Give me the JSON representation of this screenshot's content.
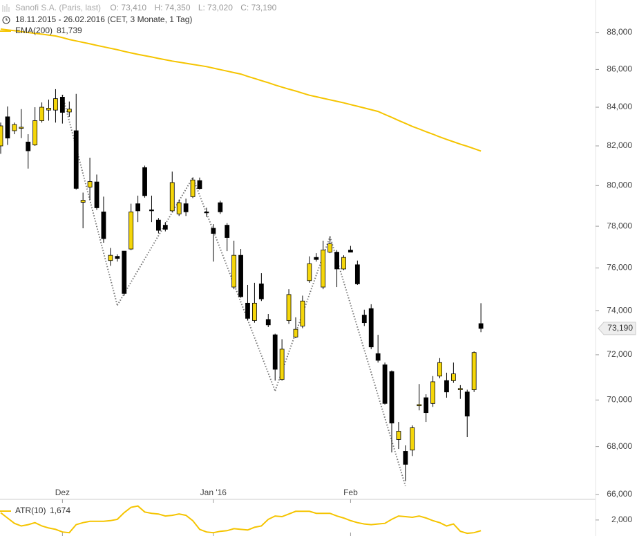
{
  "chart_data": [
    {
      "type": "candlestick",
      "title": "Sanofi S.A. (Paris, last)",
      "ohlc_labels": [
        "O: 73,410",
        "H: 74,350",
        "L: 73,020",
        "C: 73,190"
      ],
      "subtitle": "18.11.2015 - 26.02.2016 (CET, 3 Monate, 1 Tag)",
      "log_scale": true,
      "up_color": "#f5d60a",
      "down_color": "#000000",
      "categories": [
        null,
        null,
        null,
        null,
        null,
        null,
        null,
        null,
        null,
        "Dez",
        null,
        null,
        null,
        null,
        null,
        null,
        null,
        null,
        null,
        null,
        null,
        null,
        null,
        null,
        null,
        null,
        null,
        null,
        null,
        null,
        null,
        "Jan '16",
        null,
        null,
        null,
        null,
        null,
        null,
        null,
        null,
        null,
        null,
        null,
        null,
        null,
        null,
        null,
        null,
        null,
        null,
        null,
        "Feb",
        null,
        null,
        null,
        null,
        null,
        null,
        null,
        null,
        null,
        null,
        null,
        null,
        null,
        null,
        null,
        null,
        null,
        null,
        null
      ],
      "open": [
        82000,
        83500,
        82780,
        82900,
        82200,
        82050,
        83300,
        83850,
        83850,
        84530,
        83750,
        82780,
        79170,
        79920,
        80180,
        78700,
        76350,
        76550,
        76800,
        76900,
        79100,
        80900,
        78800,
        78300,
        78050,
        78750,
        78600,
        79100,
        79450,
        80250,
        78700,
        77900,
        79150,
        78050,
        75100,
        76600,
        74350,
        73550,
        75250,
        73600,
        72900,
        70900,
        73550,
        72800,
        73300,
        75400,
        76500,
        75100,
        76750,
        76750,
        75950,
        76850,
        76150,
        73800,
        74100,
        72050,
        71550,
        71250,
        68300,
        67800,
        67850,
        69750,
        70100,
        69850,
        71050,
        70850,
        70850,
        70450,
        70350,
        70450,
        73410
      ],
      "high": [
        83200,
        84040,
        83200,
        83900,
        82600,
        84000,
        84250,
        84400,
        84950,
        84650,
        84300,
        84700,
        79650,
        81400,
        80550,
        79450,
        76950,
        76650,
        76800,
        79100,
        79500,
        81000,
        79500,
        78400,
        78200,
        80700,
        79300,
        79350,
        80400,
        80400,
        78900,
        78100,
        79250,
        78150,
        77300,
        76900,
        75200,
        75300,
        75750,
        73850,
        72950,
        72700,
        75000,
        73700,
        74700,
        76550,
        76700,
        77300,
        77500,
        76850,
        76600,
        77050,
        76350,
        74050,
        74300,
        72900,
        71650,
        71300,
        69050,
        68050,
        68900,
        70700,
        70250,
        71050,
        71850,
        71200,
        71650,
        70650,
        70450,
        72150,
        74350
      ],
      "low": [
        81600,
        82050,
        82600,
        82400,
        80850,
        82000,
        83200,
        83300,
        83200,
        83150,
        83500,
        79800,
        77900,
        79300,
        78800,
        77200,
        76100,
        76300,
        74700,
        76850,
        78200,
        79400,
        78200,
        77650,
        77750,
        78700,
        78500,
        78500,
        79380,
        79800,
        78450,
        76300,
        78600,
        76800,
        75000,
        74600,
        73550,
        73450,
        74450,
        73250,
        70850,
        70850,
        73400,
        72750,
        73200,
        75300,
        76300,
        75000,
        76700,
        75100,
        75900,
        76750,
        75200,
        73300,
        72250,
        71650,
        69800,
        67750,
        67900,
        66550,
        67600,
        69550,
        69050,
        69700,
        70950,
        70100,
        70750,
        70050,
        68400,
        70350,
        73020
      ],
      "close": [
        83030,
        82400,
        83100,
        82960,
        81750,
        83300,
        84000,
        83950,
        84450,
        83730,
        83900,
        79860,
        79270,
        80200,
        78900,
        77400,
        76600,
        76450,
        74800,
        78700,
        78750,
        79500,
        78750,
        77800,
        77850,
        80150,
        79150,
        78700,
        80280,
        79850,
        78650,
        77650,
        78700,
        77450,
        76600,
        74650,
        73650,
        74350,
        74550,
        73350,
        71350,
        72250,
        74750,
        73150,
        74450,
        76200,
        76400,
        76850,
        77150,
        75950,
        76500,
        76750,
        75250,
        73450,
        72350,
        71750,
        69850,
        69000,
        68650,
        67250,
        68800,
        69800,
        69450,
        70800,
        71650,
        70350,
        71150,
        70500,
        69300,
        72100,
        73190
      ],
      "last_label": "73,190",
      "series": [
        {
          "name": "EMA(200)",
          "color": "#f5c400",
          "value_label": "81,739",
          "values": [
            88190,
            88140,
            88100,
            88050,
            88000,
            87950,
            87910,
            87860,
            87810,
            87720,
            87620,
            87540,
            87460,
            87380,
            87300,
            87220,
            87140,
            87060,
            86970,
            86890,
            86810,
            86740,
            86670,
            86590,
            86520,
            86450,
            86390,
            86330,
            86270,
            86210,
            86150,
            86070,
            85990,
            85910,
            85830,
            85750,
            85630,
            85520,
            85400,
            85290,
            85170,
            85060,
            84950,
            84850,
            84740,
            84630,
            84550,
            84470,
            84390,
            84310,
            84230,
            84140,
            84050,
            83960,
            83870,
            83780,
            83620,
            83470,
            83310,
            83160,
            83000,
            82870,
            82730,
            82600,
            82460,
            82330,
            82210,
            82090,
            81980,
            81860,
            81739
          ]
        }
      ],
      "zigzag": {
        "color": "#777777",
        "values": [
          null,
          null,
          null,
          null,
          null,
          null,
          null,
          null,
          null,
          84650,
          null,
          null,
          null,
          null,
          null,
          null,
          null,
          74250,
          null,
          null,
          null,
          null,
          null,
          null,
          null,
          null,
          null,
          null,
          80400,
          null,
          null,
          null,
          null,
          null,
          null,
          null,
          null,
          null,
          null,
          null,
          70400,
          null,
          null,
          null,
          null,
          null,
          null,
          null,
          77500,
          null,
          null,
          null,
          null,
          null,
          null,
          null,
          null,
          null,
          null,
          66350,
          null,
          null,
          null,
          null,
          null,
          null,
          null,
          null,
          null,
          null,
          null
        ]
      },
      "ylim": [
        65800,
        89800
      ],
      "yticks": [
        {
          "value": 66000,
          "label": "66,000"
        },
        {
          "value": 68000,
          "label": "68,000"
        },
        {
          "value": 70000,
          "label": "70,000"
        },
        {
          "value": 72000,
          "label": "72,000"
        },
        {
          "value": 74000,
          "label": "74,000"
        },
        {
          "value": 76000,
          "label": "76,000"
        },
        {
          "value": 78000,
          "label": "78,000"
        },
        {
          "value": 80000,
          "label": "80,000"
        },
        {
          "value": 82000,
          "label": "82,000"
        },
        {
          "value": 84000,
          "label": "84,000"
        },
        {
          "value": 86000,
          "label": "86,000"
        },
        {
          "value": 88000,
          "label": "88,000"
        }
      ]
    },
    {
      "type": "line",
      "series": [
        {
          "name": "ATR(10)",
          "color": "#f5c400",
          "value_label": "1,674",
          "values": [
            2224,
            2061,
            1898,
            1816,
            1857,
            1918,
            1816,
            1755,
            1714,
            1633,
            1612,
            1857,
            1918,
            1959,
            1959,
            1959,
            1980,
            2020,
            2224,
            2388,
            2428,
            2245,
            2204,
            2184,
            2122,
            2143,
            2184,
            2143,
            1980,
            1714,
            1633,
            1612,
            1653,
            1673,
            1735,
            1714,
            1694,
            1776,
            1816,
            2020,
            2122,
            2102,
            2184,
            2265,
            2265,
            2265,
            2204,
            2204,
            2204,
            2122,
            2061,
            1980,
            1918,
            1878,
            1857,
            1878,
            1898,
            2020,
            2122,
            2102,
            2082,
            2122,
            2061,
            1980,
            1918,
            1816,
            1878,
            1653,
            1592,
            1612,
            1674
          ]
        }
      ],
      "ylim": [
        1510,
        2590
      ],
      "yticks": [
        {
          "value": 2000,
          "label": "2,000"
        }
      ]
    }
  ]
}
